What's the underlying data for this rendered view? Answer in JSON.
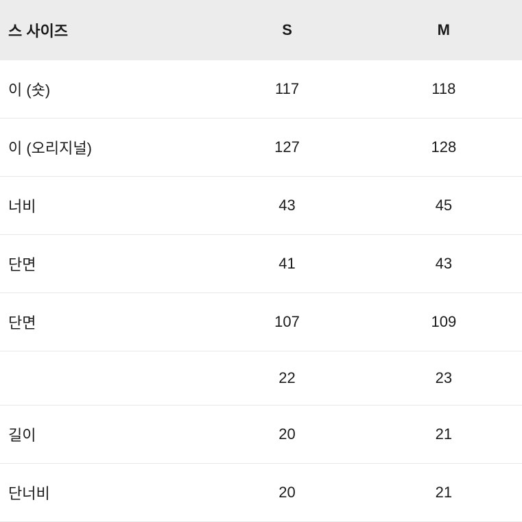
{
  "table": {
    "header": {
      "label_col": "스 사이즈",
      "size_s": "S",
      "size_m": "M"
    },
    "rows": [
      {
        "label": "이 (숏)",
        "s": "117",
        "m": "118"
      },
      {
        "label": "이 (오리지널)",
        "s": "127",
        "m": "128"
      },
      {
        "label": "너비",
        "s": "43",
        "m": "45"
      },
      {
        "label": "단면",
        "s": "41",
        "m": "43"
      },
      {
        "label": "단면",
        "s": "107",
        "m": "109"
      },
      {
        "label": "",
        "s": "22",
        "m": "23"
      },
      {
        "label": "길이",
        "s": "20",
        "m": "21"
      },
      {
        "label": "단너비",
        "s": "20",
        "m": "21"
      }
    ],
    "styling": {
      "header_bg": "#ececec",
      "border_color": "#e8e8e8",
      "text_color": "#1a1a1a",
      "font_size_header": 22,
      "font_size_cell": 22,
      "row_padding_vertical": 26
    }
  }
}
